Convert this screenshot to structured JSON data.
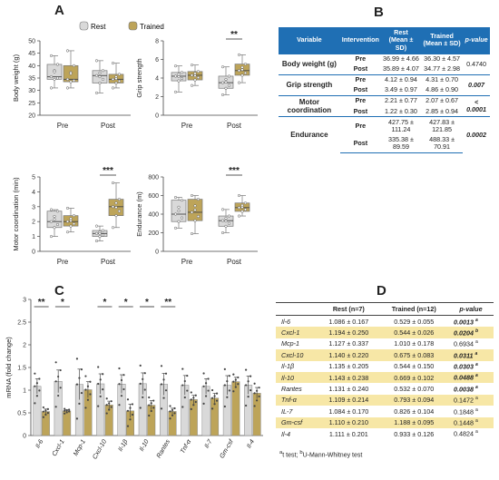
{
  "panels": {
    "a": "A",
    "b": "B",
    "c": "C",
    "d": "D"
  },
  "legend": {
    "rest": "Rest",
    "trained": "Trained"
  },
  "colors": {
    "rest": "#d9d9d9",
    "trained": "#bda459",
    "header": "#1f6fb4",
    "highlight": "#f7e7a6"
  },
  "chart_data": [
    {
      "type": "box",
      "ylabel": "Body weight (g)",
      "categories": [
        "Pre",
        "Post"
      ],
      "ylim": [
        20,
        50
      ],
      "yticks": [
        20,
        25,
        30,
        35,
        40,
        45,
        50
      ],
      "series": [
        {
          "name": "Rest",
          "boxes": [
            {
              "min": 31,
              "q1": 34.5,
              "median": 35.5,
              "q3": 40.5,
              "max": 44
            },
            {
              "min": 29,
              "q1": 33,
              "median": 36,
              "q3": 38,
              "max": 42
            }
          ]
        },
        {
          "name": "Trained",
          "boxes": [
            {
              "min": 31,
              "q1": 33.5,
              "median": 34.5,
              "q3": 40,
              "max": 46
            },
            {
              "min": 31,
              "q1": 33,
              "median": 34.5,
              "q3": 36.5,
              "max": 41
            }
          ]
        }
      ],
      "significance": []
    },
    {
      "type": "box",
      "ylabel": "Grip strength",
      "categories": [
        "Pre",
        "Post"
      ],
      "ylim": [
        0,
        8
      ],
      "yticks": [
        0,
        2,
        4,
        6,
        8
      ],
      "series": [
        {
          "name": "Rest",
          "boxes": [
            {
              "min": 2.5,
              "q1": 3.7,
              "median": 4.2,
              "q3": 4.6,
              "max": 5.3
            },
            {
              "min": 2.2,
              "q1": 2.9,
              "median": 3.5,
              "q3": 4.2,
              "max": 5.2
            }
          ]
        },
        {
          "name": "Trained",
          "boxes": [
            {
              "min": 3.2,
              "q1": 3.8,
              "median": 4.3,
              "q3": 4.7,
              "max": 5.4
            },
            {
              "min": 3.5,
              "q1": 4.3,
              "median": 4.8,
              "q3": 5.5,
              "max": 6.5
            }
          ]
        }
      ],
      "significance": [
        {
          "category": "Post",
          "label": "**"
        }
      ]
    },
    {
      "type": "box",
      "ylabel": "Motor coordination (min)",
      "categories": [
        "Pre",
        "Post"
      ],
      "ylim": [
        0,
        5
      ],
      "yticks": [
        0,
        1,
        2,
        3,
        4,
        5
      ],
      "series": [
        {
          "name": "Rest",
          "boxes": [
            {
              "min": 1,
              "q1": 1.6,
              "median": 2,
              "q3": 2.7,
              "max": 2.8
            },
            {
              "min": 0.7,
              "q1": 1,
              "median": 1.2,
              "q3": 1.4,
              "max": 1.7
            }
          ]
        },
        {
          "name": "Trained",
          "boxes": [
            {
              "min": 1.3,
              "q1": 1.7,
              "median": 2,
              "q3": 2.4,
              "max": 2.9
            },
            {
              "min": 1.6,
              "q1": 2.4,
              "median": 3,
              "q3": 3.5,
              "max": 4.6
            }
          ]
        }
      ],
      "significance": [
        {
          "category": "Post",
          "label": "***"
        }
      ]
    },
    {
      "type": "box",
      "ylabel": "Endurance (m)",
      "categories": [
        "Pre",
        "Post"
      ],
      "ylim": [
        0,
        800
      ],
      "yticks": [
        0,
        200,
        400,
        600,
        800
      ],
      "series": [
        {
          "name": "Rest",
          "boxes": [
            {
              "min": 250,
              "q1": 320,
              "median": 400,
              "q3": 550,
              "max": 580
            },
            {
              "min": 200,
              "q1": 270,
              "median": 330,
              "q3": 380,
              "max": 450
            }
          ]
        },
        {
          "name": "Trained",
          "boxes": [
            {
              "min": 190,
              "q1": 330,
              "median": 420,
              "q3": 560,
              "max": 600
            },
            {
              "min": 380,
              "q1": 430,
              "median": 470,
              "q3": 520,
              "max": 600
            }
          ]
        }
      ],
      "significance": [
        {
          "category": "Post",
          "label": "***"
        }
      ]
    },
    {
      "type": "bar",
      "ylabel": "mRNA (fold change)",
      "ylim": [
        0,
        3
      ],
      "yticks": [
        0,
        0.5,
        1,
        1.5,
        2,
        2.5,
        3
      ],
      "categories": [
        "Il-6",
        "Cxcl-1",
        "Mcp-1",
        "Cxcl-10",
        "Il-1β",
        "Il-10",
        "Rantes",
        "Tnf-α",
        "Il-7",
        "Gm-csf",
        "Il-4"
      ],
      "series": [
        {
          "name": "Rest",
          "values": [
            1.086,
            1.194,
            1.127,
            1.14,
            1.135,
            1.143,
            1.131,
            1.109,
            1.084,
            1.11,
            1.111
          ],
          "errors": [
            0.167,
            0.25,
            0.337,
            0.22,
            0.205,
            0.238,
            0.24,
            0.214,
            0.17,
            0.21,
            0.201
          ]
        },
        {
          "name": "Trained",
          "values": [
            0.529,
            0.544,
            1.01,
            0.675,
            0.544,
            0.669,
            0.532,
            0.793,
            0.826,
            1.188,
            0.933
          ],
          "errors": [
            0.055,
            0.026,
            0.178,
            0.083,
            0.15,
            0.102,
            0.07,
            0.094,
            0.104,
            0.095,
            0.126
          ]
        }
      ],
      "significance": [
        {
          "category": "Il-6",
          "label": "**"
        },
        {
          "category": "Cxcl-1",
          "label": "*"
        },
        {
          "category": "Cxcl-10",
          "label": "*"
        },
        {
          "category": "Il-1β",
          "label": "*"
        },
        {
          "category": "Il-10",
          "label": "*"
        },
        {
          "category": "Rantes",
          "label": "**"
        }
      ]
    }
  ],
  "table_b": {
    "headers": {
      "variable": "Variable",
      "intervention": "Intervention",
      "rest": "Rest",
      "rest_sub": "(Mean ± SD)",
      "trained": "Trained",
      "trained_sub": "(Mean ± SD)",
      "pvalue": "p-value"
    },
    "groups": [
      {
        "variable": "Body weight (g)",
        "p": "0.4740",
        "p_bold": false,
        "rows": [
          {
            "intervention": "Pre",
            "rest": "36.99 ± 4.66",
            "trained": "36.30 ± 4.57"
          },
          {
            "intervention": "Post",
            "rest": "35.89 ± 4.07",
            "trained": "34.77 ± 2.98"
          }
        ]
      },
      {
        "variable": "Grip strength",
        "p": "0.007",
        "p_bold": true,
        "rows": [
          {
            "intervention": "Pre",
            "rest": "4.12 ± 0.94",
            "trained": "4.31 ± 0.70"
          },
          {
            "intervention": "Post",
            "rest": "3.49 ± 0.97",
            "trained": "4.86 ± 0.90"
          }
        ]
      },
      {
        "variable": "Motor coordination",
        "p": "< 0.0001",
        "p_bold": true,
        "rows": [
          {
            "intervention": "Pre",
            "rest": "2.21 ± 0.77",
            "trained": "2.07 ± 0.67"
          },
          {
            "intervention": "Post",
            "rest": "1.22 ± 0.30",
            "trained": "2.85 ± 0.94"
          }
        ]
      },
      {
        "variable": "Endurance",
        "p": "0.0002",
        "p_bold": true,
        "rows": [
          {
            "intervention": "Pre",
            "rest": "427.75 ± 111.24",
            "trained": "427.83 ± 121.85"
          },
          {
            "intervention": "Post",
            "rest": "335.38 ± 89.59",
            "trained": "488.33 ± 70.91"
          }
        ]
      }
    ]
  },
  "table_d": {
    "headers": {
      "gene": "",
      "rest": "Rest (n=7)",
      "trained": "Trained (n=12)",
      "pvalue": "p-value"
    },
    "rows": [
      {
        "gene": "Il-6",
        "rest": "1.086 ± 0.167",
        "trained": "0.529 ± 0.055",
        "p": "0.0013",
        "sup": "a",
        "sig": true
      },
      {
        "gene": "Cxcl-1",
        "rest": "1.194 ± 0.250",
        "trained": "0.544 ± 0.026",
        "p": "0.0204",
        "sup": "b",
        "sig": true
      },
      {
        "gene": "Mcp-1",
        "rest": "1.127 ± 0.337",
        "trained": "1.010 ± 0.178",
        "p": "0.6934",
        "sup": "a",
        "sig": false
      },
      {
        "gene": "Cxcl-10",
        "rest": "1.140 ± 0.220",
        "trained": "0.675 ± 0.083",
        "p": "0.0311",
        "sup": "a",
        "sig": true
      },
      {
        "gene": "Il-1β",
        "rest": "1.135 ± 0.205",
        "trained": "0.544 ± 0.150",
        "p": "0.0303",
        "sup": "a",
        "sig": true
      },
      {
        "gene": "Il-10",
        "rest": "1.143 ± 0.238",
        "trained": "0.669 ± 0.102",
        "p": "0.0488",
        "sup": "a",
        "sig": true
      },
      {
        "gene": "Rantes",
        "rest": "1.131 ± 0.240",
        "trained": "0.532 ± 0.070",
        "p": "0.0038",
        "sup": "a",
        "sig": true
      },
      {
        "gene": "Tnf-α",
        "rest": "1.109 ± 0.214",
        "trained": "0.793 ± 0.094",
        "p": "0.1472",
        "sup": "a",
        "sig": false
      },
      {
        "gene": "IL-7",
        "rest": "1.084 ± 0.170",
        "trained": "0.826 ± 0.104",
        "p": "0.1848",
        "sup": "a",
        "sig": false
      },
      {
        "gene": "Gm-csf",
        "rest": "1.110 ± 0.210",
        "trained": "1.188 ± 0.095",
        "p": "0.1448",
        "sup": "a",
        "sig": false
      },
      {
        "gene": "Il-4",
        "rest": "1.111 ± 0.201",
        "trained": "0.933 ± 0.126",
        "p": "0.4824",
        "sup": "a",
        "sig": false
      }
    ],
    "footnote_a": "t test;",
    "footnote_b": "U-Mann-Whitney test",
    "sup_a": "a",
    "sup_b": "b"
  }
}
